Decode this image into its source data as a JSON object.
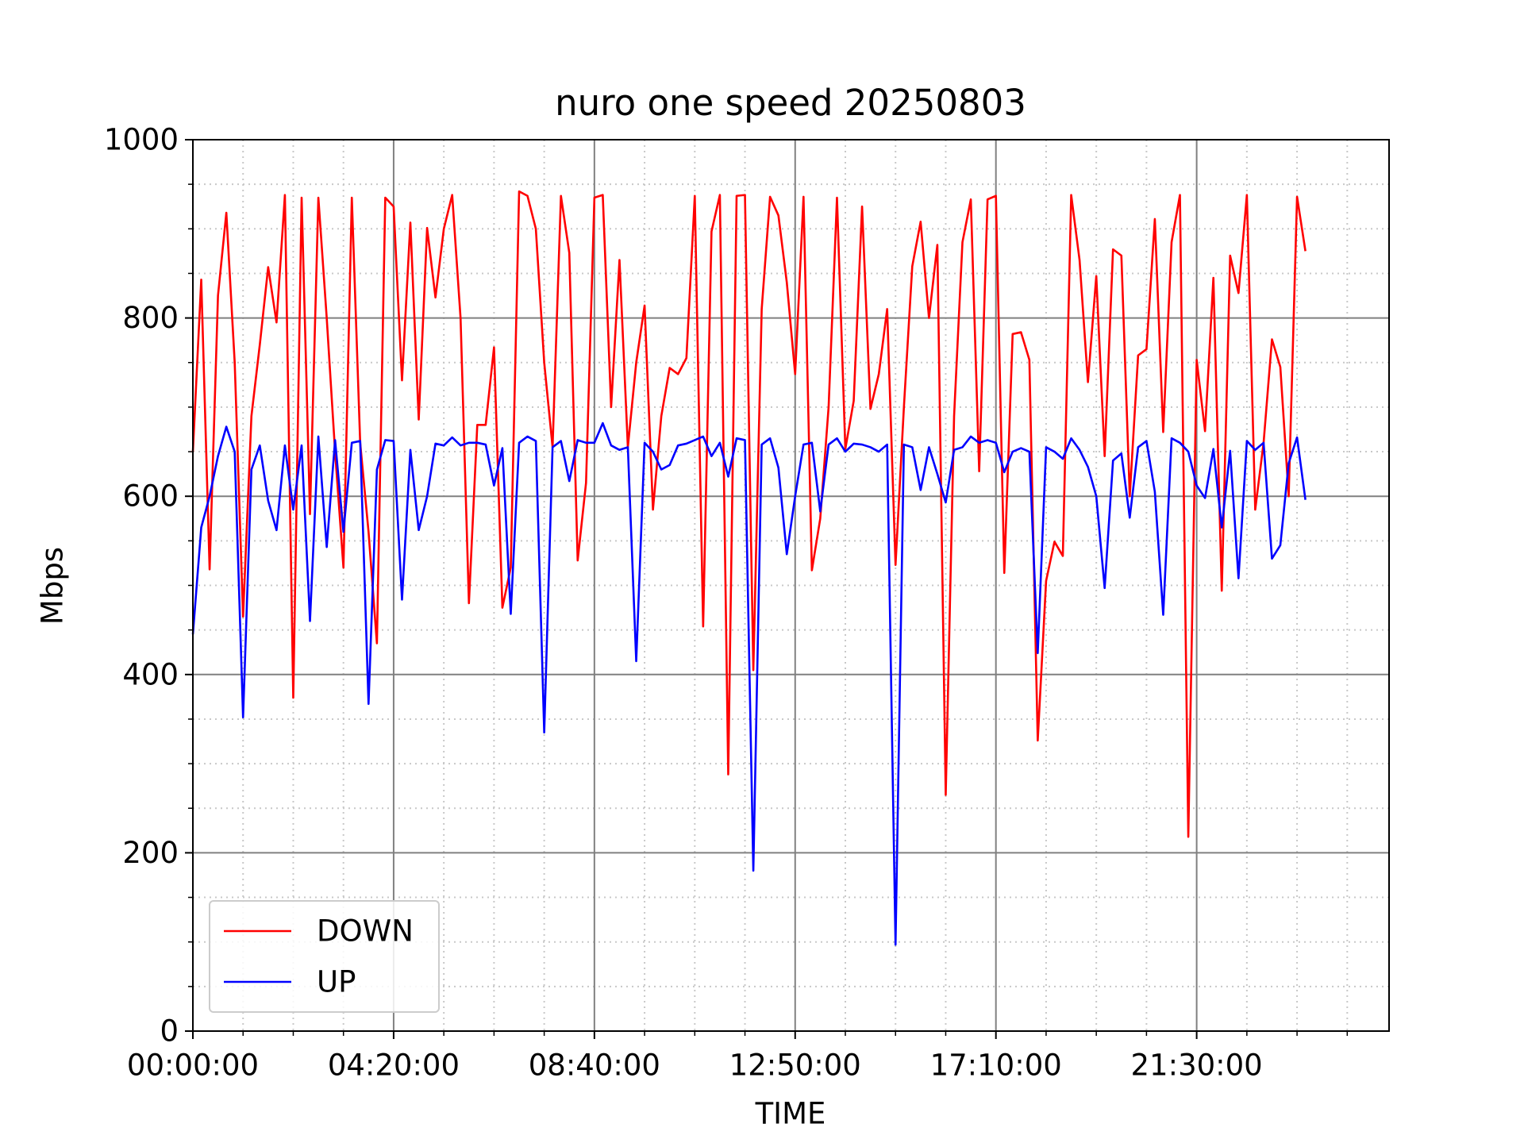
{
  "chart_data": {
    "type": "line",
    "title": "nuro one speed 20250803",
    "xlabel": "TIME",
    "ylabel": "Mbps",
    "xlim": [
      0,
      143
    ],
    "ylim": [
      0,
      1000
    ],
    "xticks": [
      {
        "value": 0,
        "label": "00:00:00"
      },
      {
        "value": 24,
        "label": "04:20:00"
      },
      {
        "value": 48,
        "label": "08:40:00"
      },
      {
        "value": 72,
        "label": "12:50:00"
      },
      {
        "value": 96,
        "label": "17:10:00"
      },
      {
        "value": 120,
        "label": "21:30:00"
      }
    ],
    "yticks": [
      0,
      200,
      400,
      600,
      800,
      1000
    ],
    "minor_xticks": [
      6,
      12,
      18,
      30,
      36,
      42,
      54,
      60,
      66,
      78,
      84,
      90,
      102,
      108,
      114,
      126,
      132,
      138
    ],
    "minor_yticks": [
      50,
      100,
      150,
      250,
      300,
      350,
      450,
      500,
      550,
      650,
      700,
      750,
      850,
      900,
      950
    ],
    "grid": true,
    "legend": "lower left",
    "series": [
      {
        "name": "DOWN",
        "color": "#ff0000",
        "values": [
          650,
          843,
          518,
          825,
          918,
          750,
          465,
          690,
          770,
          857,
          795,
          938,
          374,
          935,
          580,
          935,
          800,
          650,
          520,
          935,
          660,
          560,
          435,
          935,
          925,
          730,
          907,
          686,
          901,
          823,
          900,
          938,
          800,
          480,
          680,
          680,
          767,
          475,
          520,
          942,
          937,
          900,
          750,
          655,
          937,
          873,
          528,
          615,
          935,
          938,
          700,
          865,
          655,
          750,
          814,
          585,
          690,
          744,
          737,
          755,
          937,
          454,
          897,
          938,
          288,
          937,
          938,
          405,
          810,
          936,
          915,
          840,
          737,
          936,
          517,
          575,
          700,
          935,
          653,
          707,
          925,
          698,
          737,
          810,
          523,
          700,
          858,
          908,
          800,
          882,
          265,
          690,
          885,
          933,
          628,
          933,
          937,
          514,
          782,
          784,
          753,
          326,
          505,
          549,
          533,
          938,
          865,
          728,
          847,
          645,
          877,
          870,
          600,
          758,
          765,
          911,
          672,
          885,
          938,
          218,
          753,
          673,
          845,
          494,
          870,
          828,
          938,
          585,
          660,
          776,
          745,
          600,
          936,
          875
        ]
      },
      {
        "name": "UP",
        "color": "#0000ff",
        "values": [
          445,
          565,
          600,
          645,
          678,
          650,
          352,
          630,
          657,
          595,
          562,
          657,
          585,
          657,
          460,
          667,
          543,
          663,
          560,
          660,
          662,
          367,
          630,
          663,
          662,
          484,
          652,
          562,
          600,
          659,
          657,
          666,
          657,
          660,
          660,
          658,
          612,
          654,
          468,
          660,
          667,
          662,
          335,
          655,
          662,
          617,
          663,
          660,
          660,
          682,
          657,
          652,
          655,
          415,
          660,
          650,
          630,
          635,
          657,
          659,
          663,
          667,
          645,
          660,
          622,
          665,
          663,
          180,
          658,
          665,
          632,
          535,
          600,
          658,
          660,
          583,
          658,
          665,
          650,
          659,
          658,
          655,
          650,
          658,
          97,
          658,
          655,
          607,
          655,
          625,
          593,
          652,
          655,
          667,
          660,
          663,
          660,
          627,
          650,
          654,
          650,
          424,
          655,
          650,
          642,
          665,
          652,
          633,
          600,
          497,
          640,
          648,
          576,
          655,
          662,
          605,
          467,
          665,
          660,
          650,
          612,
          598,
          653,
          565,
          651,
          508,
          662,
          652,
          660,
          530,
          545,
          637,
          666,
          596
        ]
      }
    ]
  }
}
